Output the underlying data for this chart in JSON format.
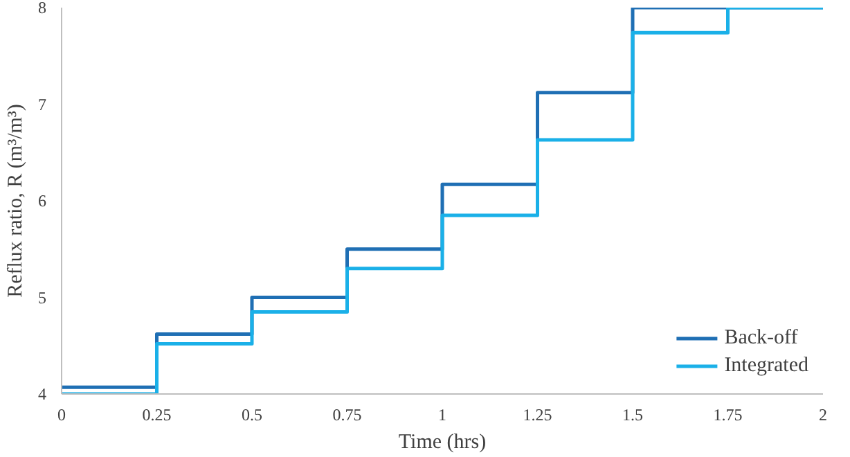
{
  "chart_data": {
    "type": "step",
    "xlabel": "Time (hrs)",
    "ylabel": "Reflux ratio, R (m³/m³)",
    "xlim": [
      0,
      2
    ],
    "xticks": [
      0,
      0.25,
      0.5,
      0.75,
      1,
      1.25,
      1.5,
      1.75,
      2
    ],
    "ylim": [
      4,
      8
    ],
    "yticks": [
      4,
      5,
      6,
      7,
      8
    ],
    "series": [
      {
        "name": "Back-off",
        "color": "#1f6fb4",
        "x": [
          0,
          0.25,
          0.5,
          0.75,
          1,
          1.25,
          1.5,
          1.75,
          2
        ],
        "values": [
          4.07,
          4.62,
          5.0,
          5.5,
          6.17,
          7.12,
          8.0,
          8.0,
          8.0
        ]
      },
      {
        "name": "Integrated",
        "color": "#1ab0e8",
        "x": [
          0,
          0.25,
          0.5,
          0.75,
          1,
          1.25,
          1.5,
          1.75,
          2
        ],
        "values": [
          4.0,
          4.52,
          4.85,
          5.3,
          5.85,
          6.63,
          7.74,
          8.0,
          8.0
        ]
      }
    ],
    "grid": false,
    "legend": "bottom right"
  }
}
